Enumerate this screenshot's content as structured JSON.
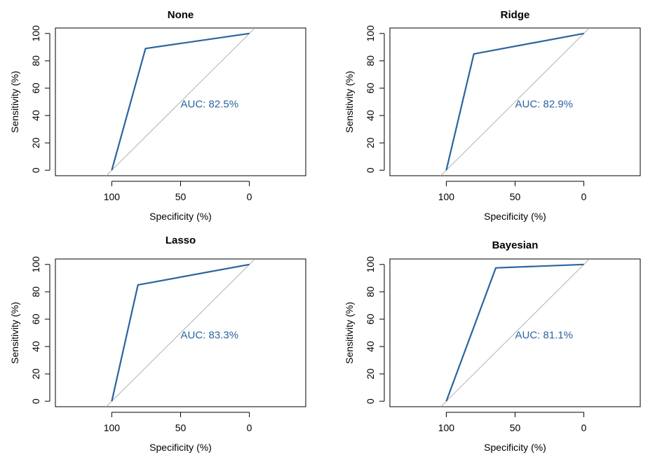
{
  "colors": {
    "curve": "#2a64a0",
    "diagonal": "#b3b3b3",
    "frame": "#000000"
  },
  "chart_data": [
    {
      "type": "line",
      "title": "None",
      "xlabel": "Specificity (%)",
      "ylabel": "Sensitivity (%)",
      "xlim": [
        141,
        -41
      ],
      "ylim": [
        -4,
        104
      ],
      "xticks": [
        100,
        50,
        0
      ],
      "yticks": [
        0,
        20,
        40,
        60,
        80,
        100
      ],
      "series": [
        {
          "x": [
            100,
            75.5,
            0
          ],
          "y": [
            0,
            89,
            100
          ]
        }
      ],
      "reference_line": {
        "x": [
          104,
          -4
        ],
        "y": [
          -4,
          104
        ]
      },
      "annotation": "AUC: 82.5%"
    },
    {
      "type": "line",
      "title": "Ridge",
      "xlabel": "Specificity (%)",
      "ylabel": "Sensitivity (%)",
      "xlim": [
        141,
        -41
      ],
      "ylim": [
        -4,
        104
      ],
      "xticks": [
        100,
        50,
        0
      ],
      "yticks": [
        0,
        20,
        40,
        60,
        80,
        100
      ],
      "series": [
        {
          "x": [
            100,
            80,
            0
          ],
          "y": [
            0,
            85,
            100
          ]
        }
      ],
      "reference_line": {
        "x": [
          104,
          -4
        ],
        "y": [
          -4,
          104
        ]
      },
      "annotation": "AUC: 82.9%"
    },
    {
      "type": "line",
      "title": "Lasso",
      "xlabel": "Specificity (%)",
      "ylabel": "Sensitivity (%)",
      "xlim": [
        141,
        -41
      ],
      "ylim": [
        -4,
        104
      ],
      "xticks": [
        100,
        50,
        0
      ],
      "yticks": [
        0,
        20,
        40,
        60,
        80,
        100
      ],
      "series": [
        {
          "x": [
            100,
            81,
            0
          ],
          "y": [
            0,
            85,
            100
          ]
        }
      ],
      "reference_line": {
        "x": [
          104,
          -4
        ],
        "y": [
          -4,
          104
        ]
      },
      "annotation": "AUC: 83.3%"
    },
    {
      "type": "line",
      "title": "Bayesian",
      "xlabel": "Specificity (%)",
      "ylabel": "Sensitivity (%)",
      "xlim": [
        141,
        -41
      ],
      "ylim": [
        -4,
        104
      ],
      "xticks": [
        100,
        50,
        0
      ],
      "yticks": [
        0,
        20,
        40,
        60,
        80,
        100
      ],
      "series": [
        {
          "x": [
            100,
            64,
            0
          ],
          "y": [
            0,
            97.5,
            100
          ]
        }
      ],
      "reference_line": {
        "x": [
          104,
          -4
        ],
        "y": [
          -4,
          104
        ]
      },
      "annotation": "AUC: 81.1%"
    }
  ]
}
